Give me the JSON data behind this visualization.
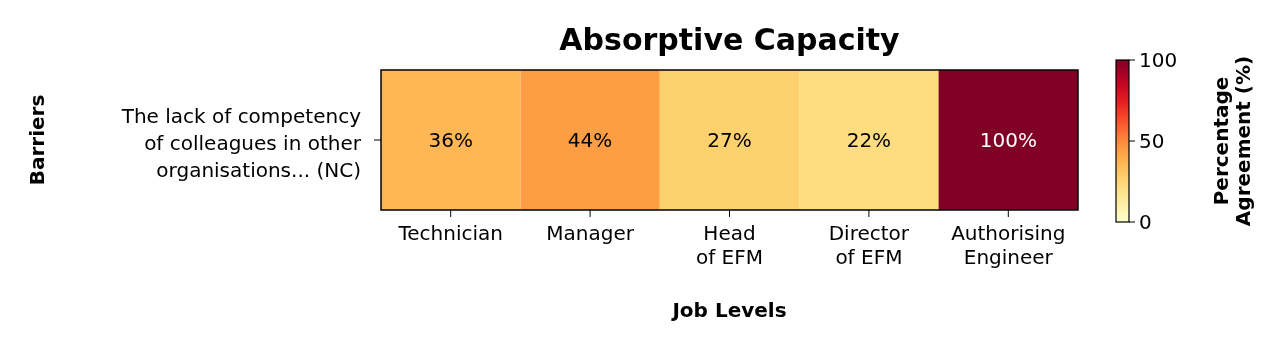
{
  "chart_data": {
    "type": "heatmap",
    "title": "Absorptive Capacity",
    "xlabel": "Job Levels",
    "ylabel": "Barriers",
    "clabel": "Percentage\nAgreement (%)",
    "categories": [
      "Technician",
      "Manager",
      "Head\nof EFM",
      "Director\nof EFM",
      "Authorising\nEngineer"
    ],
    "y_categories": [
      "The lack of competency\nof colleagues in other\norganisations... (NC)"
    ],
    "cells": [
      [
        36,
        44,
        27,
        22,
        100
      ]
    ],
    "cell_labels": [
      [
        "36%",
        "44%",
        "27%",
        "22%",
        "100%"
      ]
    ],
    "clim": [
      0,
      100
    ],
    "cticks": [
      0,
      50,
      100
    ]
  }
}
